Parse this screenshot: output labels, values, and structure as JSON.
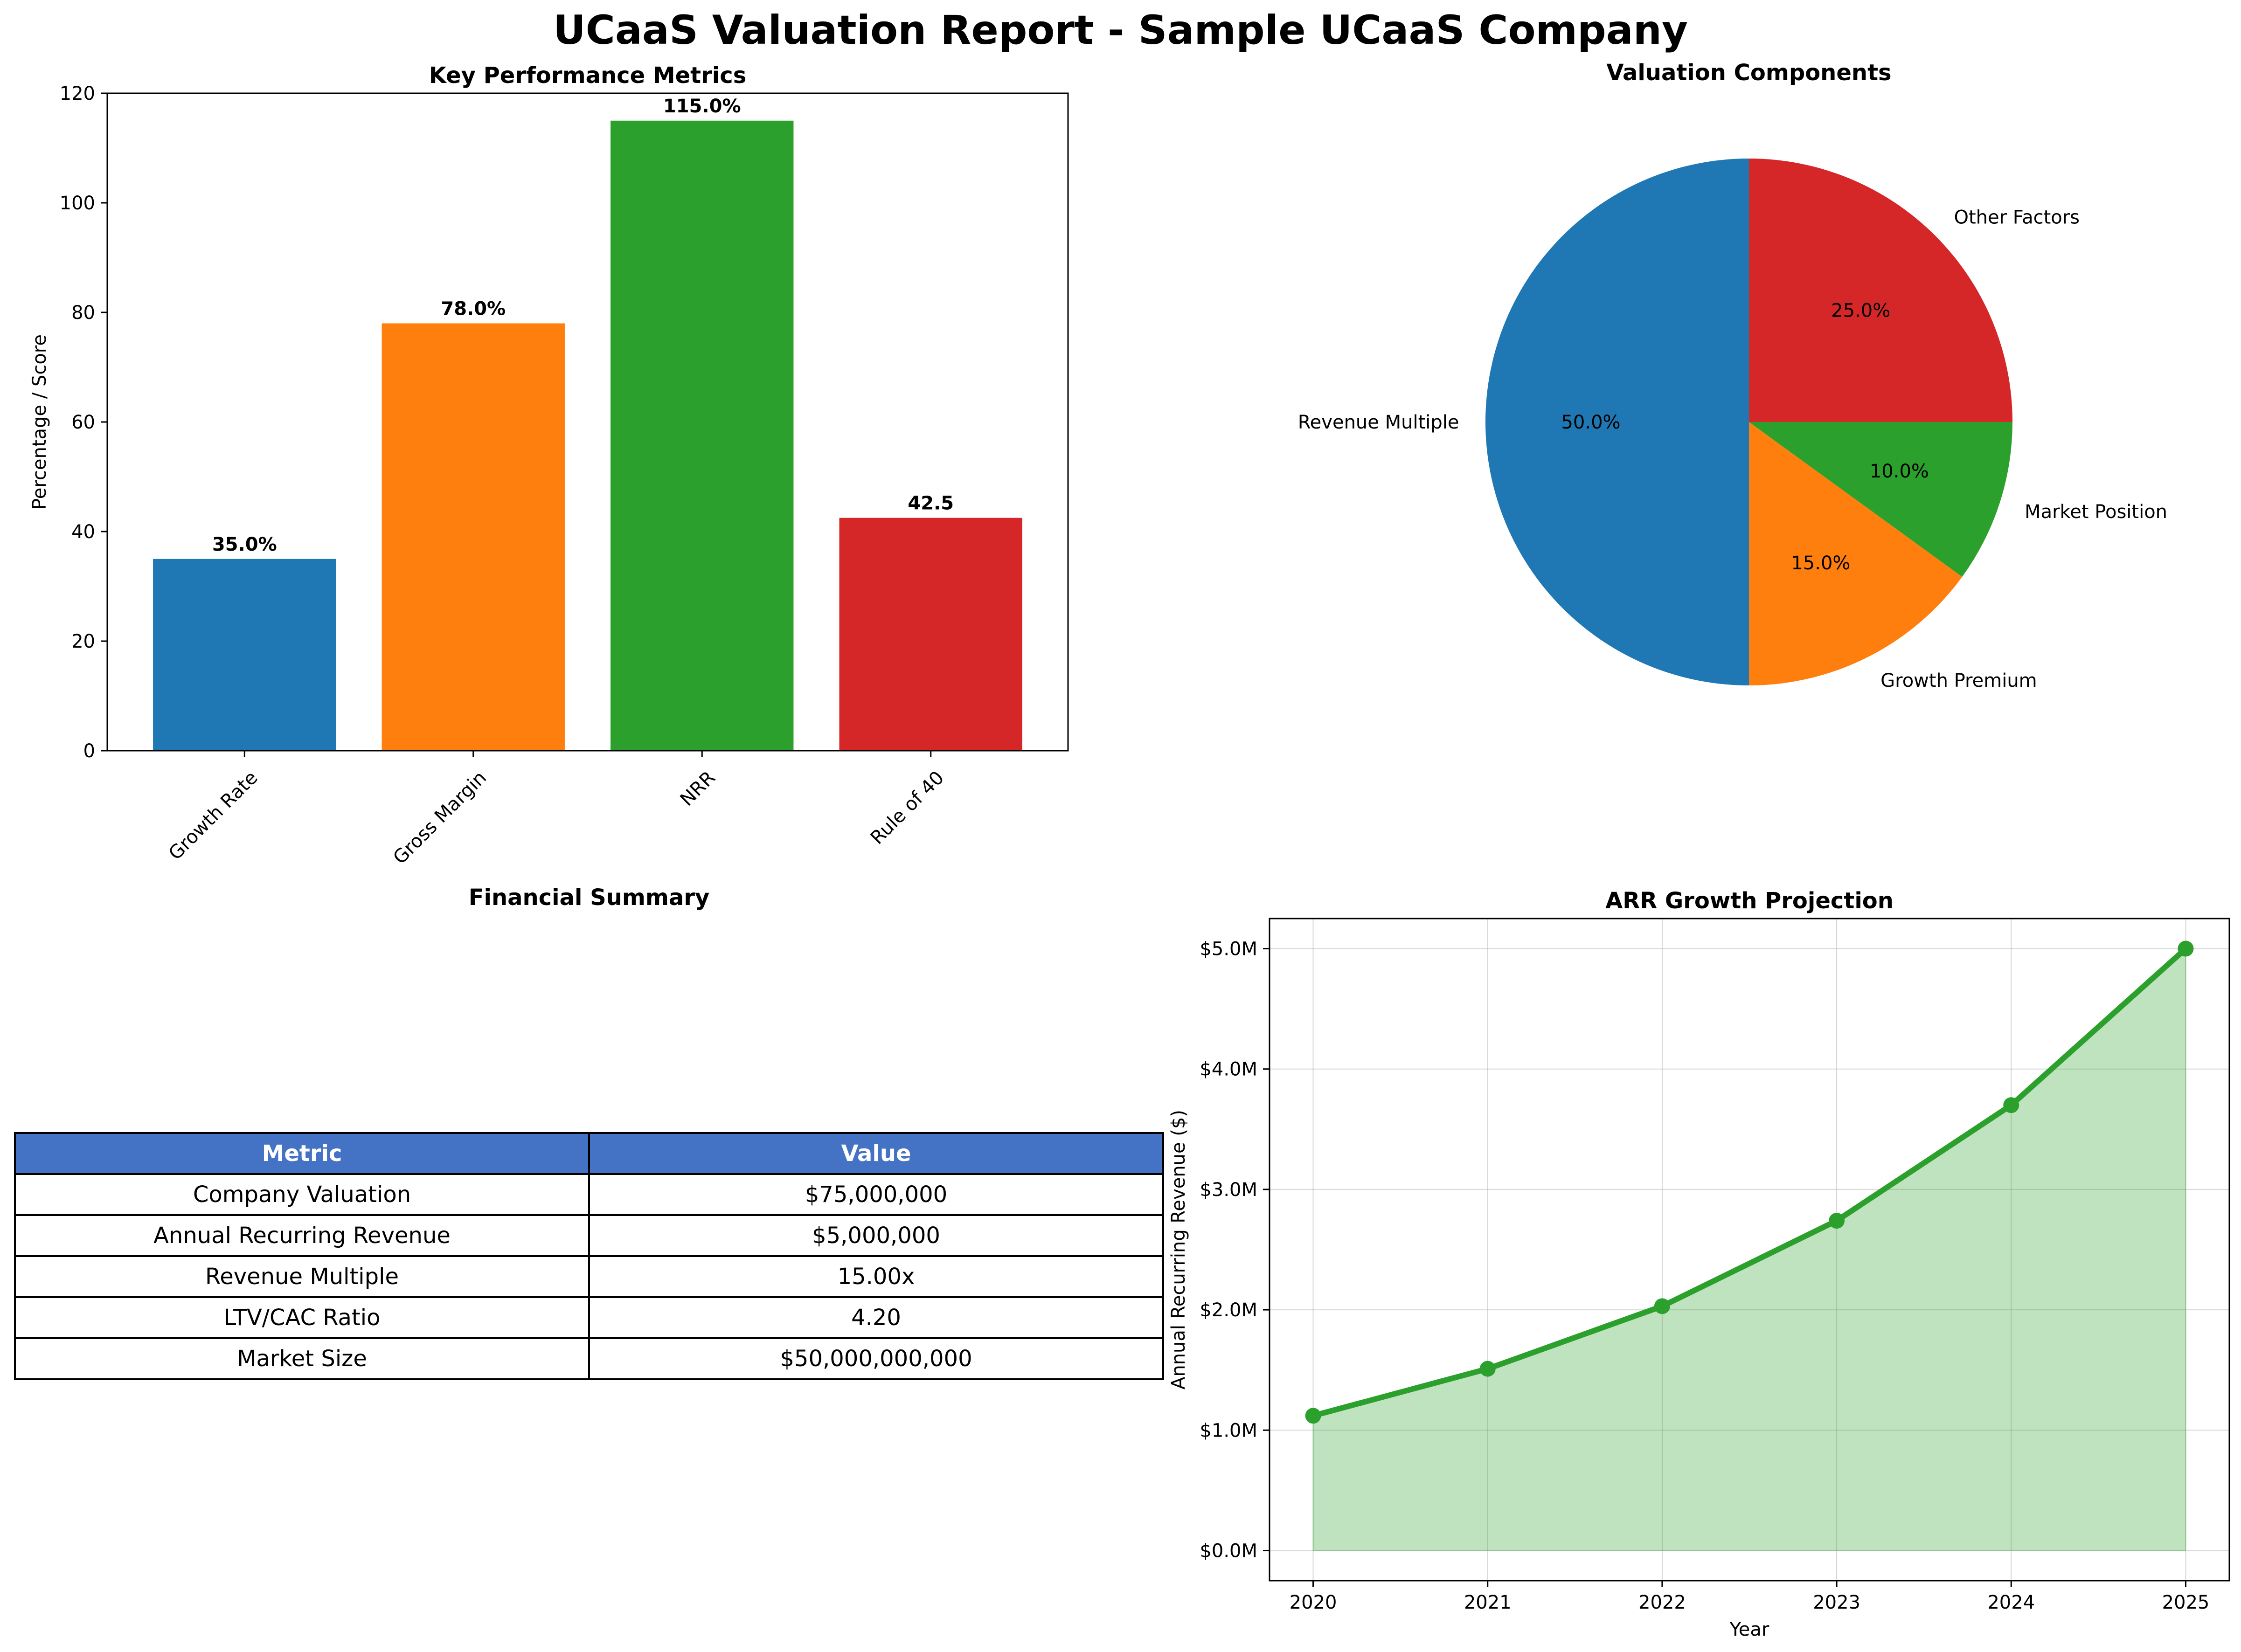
{
  "title": "UCaaS Valuation Report - Sample UCaaS Company",
  "chart_data": [
    {
      "type": "bar",
      "title": "Key Performance Metrics",
      "xlabel": "",
      "ylabel": "Percentage / Score",
      "categories": [
        "Growth Rate",
        "Gross Margin",
        "NRR",
        "Rule of 40"
      ],
      "values": [
        35.0,
        78.0,
        115.0,
        42.5
      ],
      "data_labels": [
        "35.0%",
        "78.0%",
        "115.0%",
        "42.5"
      ],
      "colors": [
        "#1f77b4",
        "#ff7f0e",
        "#2ca02c",
        "#d62728"
      ],
      "ylim": [
        0,
        120
      ],
      "yticks": [
        0,
        20,
        40,
        60,
        80,
        100,
        120
      ],
      "ytick_labels": [
        "0",
        "20",
        "40",
        "60",
        "80",
        "100",
        "120"
      ],
      "grid": false
    },
    {
      "type": "pie",
      "title": "Valuation Components",
      "labels": [
        "Revenue Multiple",
        "Growth Premium",
        "Market Position",
        "Other Factors"
      ],
      "values": [
        50.0,
        15.0,
        10.0,
        25.0
      ],
      "pct_labels": [
        "50.0%",
        "15.0%",
        "10.0%",
        "25.0%"
      ],
      "colors": [
        "#1f77b4",
        "#ff7f0e",
        "#2ca02c",
        "#d62728"
      ],
      "start_angle": 90
    },
    {
      "type": "table",
      "title": "Financial Summary",
      "columns": [
        "Metric",
        "Value"
      ],
      "rows": [
        [
          "Company Valuation",
          "$75,000,000"
        ],
        [
          "Annual Recurring Revenue",
          "$5,000,000"
        ],
        [
          "Revenue Multiple",
          "15.00x"
        ],
        [
          "LTV/CAC Ratio",
          "4.20"
        ],
        [
          "Market Size",
          "$50,000,000,000"
        ]
      ],
      "header_color": "#4472c4"
    },
    {
      "type": "area",
      "title": "ARR Growth Projection",
      "xlabel": "Year",
      "ylabel": "Annual Recurring Revenue ($)",
      "x": [
        2020,
        2021,
        2022,
        2023,
        2024,
        2025
      ],
      "xtick_labels": [
        "2020",
        "2021",
        "2022",
        "2023",
        "2024",
        "2025"
      ],
      "values": [
        1.12,
        1.51,
        2.03,
        2.74,
        3.7,
        5.0
      ],
      "value_unit": "$M",
      "ylim": [
        -0.25,
        5.25
      ],
      "yticks": [
        0,
        1,
        2,
        3,
        4,
        5
      ],
      "ytick_labels": [
        "$0.0M",
        "$1.0M",
        "$2.0M",
        "$3.0M",
        "$4.0M",
        "$5.0M"
      ],
      "line_color": "#2ca02c",
      "fill_color": "#2ca02c",
      "grid": true
    }
  ]
}
